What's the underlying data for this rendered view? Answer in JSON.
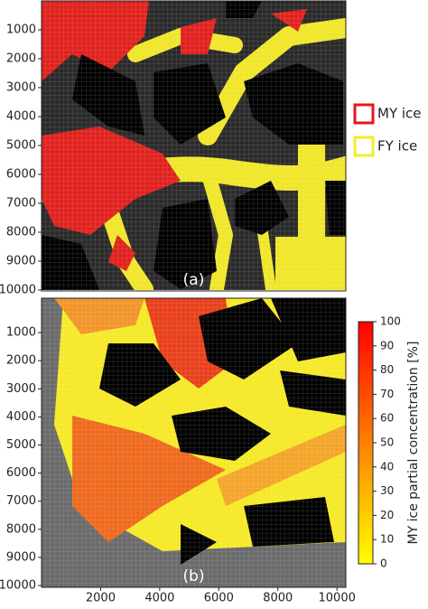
{
  "chart_data": [
    {
      "type": "map",
      "panel_label": "(a)",
      "ylim": [
        0,
        10000
      ],
      "yticks": [
        1000,
        2000,
        3000,
        4000,
        5000,
        6000,
        7000,
        8000,
        9000,
        10000
      ],
      "xlim": [
        0,
        10300
      ],
      "legend": [
        {
          "name": "MY ice",
          "color": "#e8141c"
        },
        {
          "name": "FY ice",
          "color": "#f5ec2a"
        }
      ]
    },
    {
      "type": "map",
      "panel_label": "(b)",
      "ylim": [
        0,
        10000
      ],
      "yticks": [
        1000,
        2000,
        3000,
        4000,
        5000,
        6000,
        7000,
        8000,
        9000,
        10000
      ],
      "xlim": [
        0,
        10300
      ],
      "xticks": [
        2000,
        4000,
        6000,
        8000,
        10000
      ],
      "colorbar": {
        "label": "MY ice partial concentration [%]",
        "lim": [
          0,
          100
        ],
        "ticks": [
          0,
          10,
          20,
          30,
          40,
          50,
          60,
          70,
          80,
          90,
          100
        ],
        "colors": [
          "#ffff00",
          "#ff0000"
        ]
      }
    }
  ]
}
